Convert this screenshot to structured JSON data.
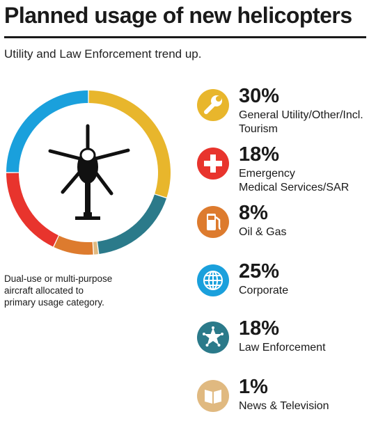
{
  "title": "Planned usage of new helicopters",
  "subtitle": "Utility and Law Enforcement trend up.",
  "note": [
    "Dual-use or multi-purpose",
    "aircraft allocated to",
    "primary usage category."
  ],
  "colors": {
    "utility": "#e8b62c",
    "emergency": "#e8342d",
    "oil_gas": "#dd7b2e",
    "corporate": "#1aa0dc",
    "law": "#2b7a8a",
    "news": "#e0b980"
  },
  "chart_data": {
    "type": "pie",
    "categories": [
      "General Utility/Other/Incl. Tourism",
      "Law Enforcement",
      "News & Television",
      "Oil & Gas",
      "Emergency Medical Services/SAR",
      "Corporate"
    ],
    "values": [
      30,
      18,
      1,
      8,
      18,
      25
    ],
    "value_suffix": "%",
    "series_colors": [
      "#e8b62c",
      "#2b7a8a",
      "#e0b980",
      "#dd7b2e",
      "#e8342d",
      "#1aa0dc"
    ]
  },
  "legend": [
    {
      "pct": "30%",
      "lines": [
        "General Utility/Other/Incl.",
        "Tourism"
      ],
      "icon": "wrench-icon",
      "color": "#e8b62c"
    },
    {
      "pct": "18%",
      "lines": [
        "Emergency",
        "Medical Services/SAR"
      ],
      "icon": "medical-cross-icon",
      "color": "#e8342d"
    },
    {
      "pct": "8%",
      "lines": [
        "Oil & Gas"
      ],
      "icon": "fuel-pump-icon",
      "color": "#dd7b2e"
    },
    {
      "pct": "25%",
      "lines": [
        "Corporate"
      ],
      "icon": "globe-icon",
      "color": "#1aa0dc"
    },
    {
      "pct": "18%",
      "lines": [
        "Law Enforcement"
      ],
      "icon": "sheriff-star-icon",
      "color": "#2b7a8a"
    },
    {
      "pct": "1%",
      "lines": [
        "News & Television"
      ],
      "icon": "book-icon",
      "color": "#e0b980"
    }
  ]
}
